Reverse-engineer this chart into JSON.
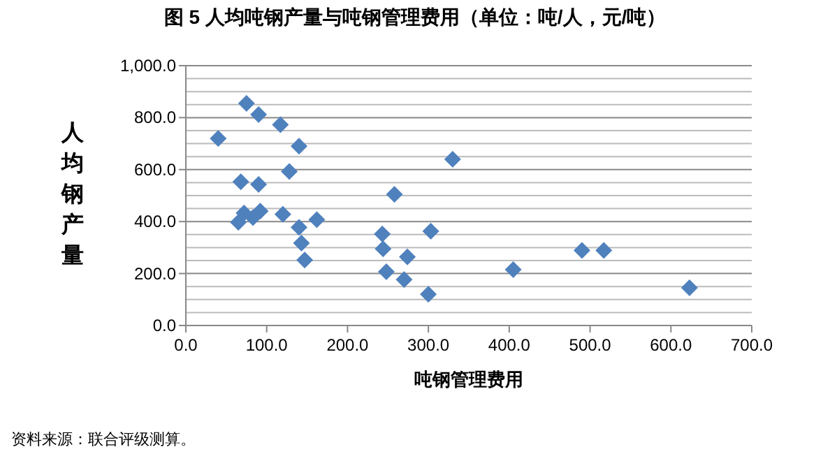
{
  "chart_data": {
    "type": "scatter",
    "title": "图 5   人均吨钢产量与吨钢管理费用（单位：吨/人，元/吨）",
    "xlabel": "吨钢管理费用",
    "ylabel": "人均钢产量",
    "annotations": [
      "资料来源：联合评级测算。"
    ],
    "x": [
      40,
      75,
      90,
      117,
      140,
      128,
      68,
      90,
      72,
      92,
      83,
      65,
      120,
      143,
      162,
      140,
      147,
      243,
      244,
      248,
      258,
      270,
      274,
      300,
      303,
      330,
      405,
      490,
      517,
      623
    ],
    "values": [
      720,
      855,
      812,
      773,
      690,
      593,
      553,
      543,
      433,
      440,
      415,
      397,
      428,
      317,
      407,
      378,
      252,
      352,
      295,
      207,
      505,
      177,
      264,
      120,
      363,
      640,
      215,
      289,
      289,
      145
    ],
    "color": "#4f81bd",
    "marker": "diamond",
    "xlim": [
      0,
      700
    ],
    "xticks": [
      {
        "value": 0,
        "label": "0.0"
      },
      {
        "value": 100,
        "label": "100.0"
      },
      {
        "value": 200,
        "label": "200.0"
      },
      {
        "value": 300,
        "label": "300.0"
      },
      {
        "value": 400,
        "label": "400.0"
      },
      {
        "value": 500,
        "label": "500.0"
      },
      {
        "value": 600,
        "label": "600.0"
      },
      {
        "value": 700,
        "label": "700.0"
      }
    ],
    "ylim": [
      0,
      1000
    ],
    "yticks": [
      {
        "value": 0,
        "label": "0.0"
      },
      {
        "value": 200,
        "label": "200.0"
      },
      {
        "value": 400,
        "label": "400.0"
      },
      {
        "value": 600,
        "label": "600.0"
      },
      {
        "value": 800,
        "label": "800.0"
      },
      {
        "value": 1000,
        "label": "1,000.0"
      }
    ],
    "grid": "y"
  }
}
